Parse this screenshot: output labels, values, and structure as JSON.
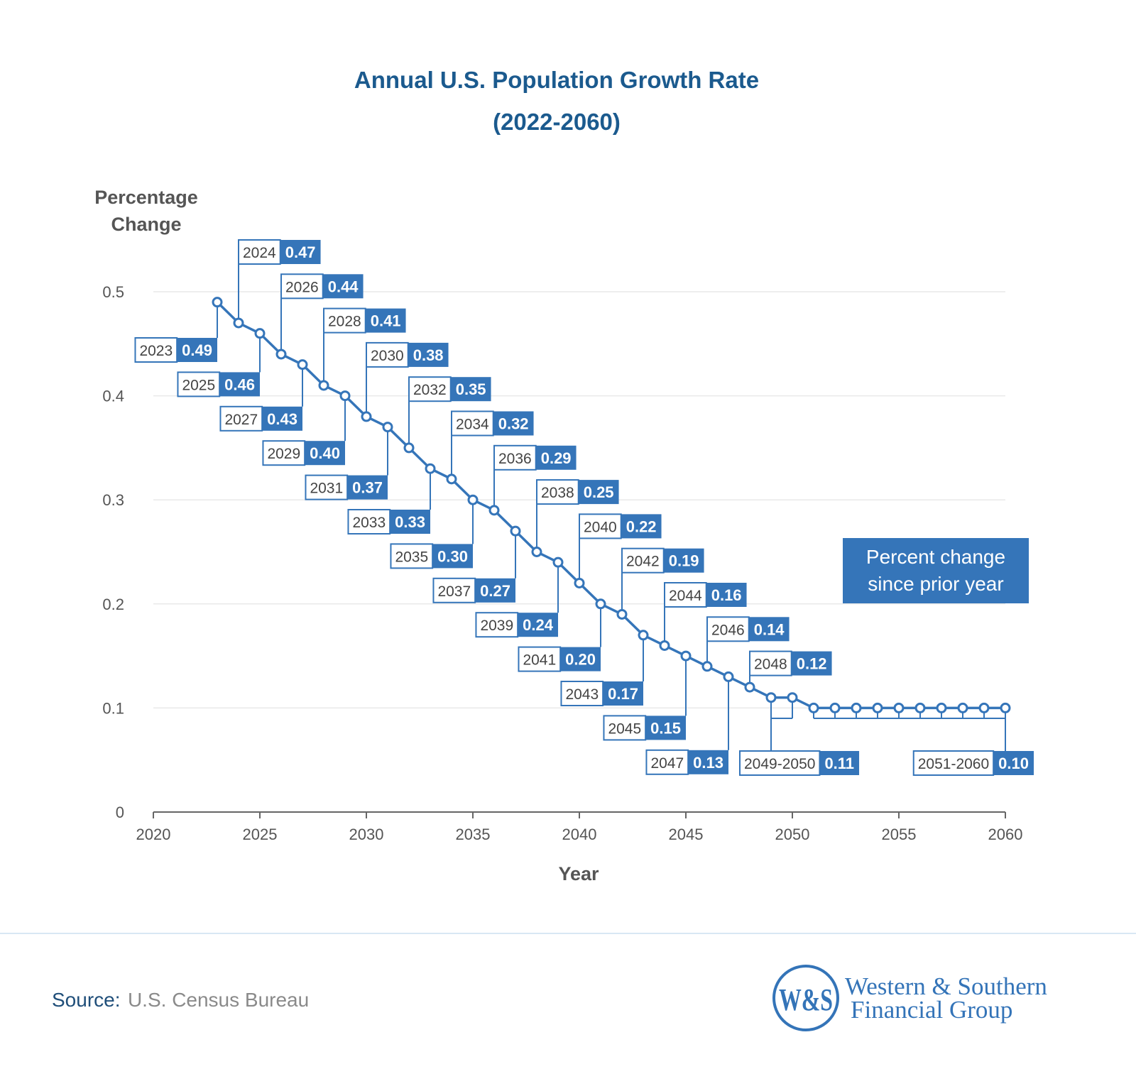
{
  "colors": {
    "accent": "#3575b9",
    "title": "#1b5a8e",
    "axis_text": "#555555",
    "grid": "#e9e9e9"
  },
  "chart_data": {
    "type": "line",
    "title": "Annual U.S. Population Growth Rate",
    "subtitle": "(2022-2060)",
    "xlabel": "Year",
    "ylabel": [
      "Percentage",
      "Change"
    ],
    "xlim": [
      2020,
      2060
    ],
    "ylim": [
      0,
      0.5
    ],
    "x_ticks": [
      "2020",
      "2025",
      "2030",
      "2035",
      "2040",
      "2045",
      "2050",
      "2055",
      "2060"
    ],
    "y_ticks": [
      "0",
      "0.1",
      "0.2",
      "0.3",
      "0.4",
      "0.5"
    ],
    "grid": "horizontal",
    "x": [
      2023,
      2024,
      2025,
      2026,
      2027,
      2028,
      2029,
      2030,
      2031,
      2032,
      2033,
      2034,
      2035,
      2036,
      2037,
      2038,
      2039,
      2040,
      2041,
      2042,
      2043,
      2044,
      2045,
      2046,
      2047,
      2048,
      2049,
      2050,
      2051,
      2052,
      2053,
      2054,
      2055,
      2056,
      2057,
      2058,
      2059,
      2060
    ],
    "y": [
      0.49,
      0.47,
      0.46,
      0.44,
      0.43,
      0.41,
      0.4,
      0.38,
      0.37,
      0.35,
      0.33,
      0.32,
      0.3,
      0.29,
      0.27,
      0.25,
      0.24,
      0.22,
      0.2,
      0.19,
      0.17,
      0.16,
      0.15,
      0.14,
      0.13,
      0.12,
      0.11,
      0.11,
      0.1,
      0.1,
      0.1,
      0.1,
      0.1,
      0.1,
      0.1,
      0.1,
      0.1,
      0.1
    ],
    "labels": [
      {
        "text": "2023",
        "value": "0.49"
      },
      {
        "text": "2024",
        "value": "0.47"
      },
      {
        "text": "2025",
        "value": "0.46"
      },
      {
        "text": "2026",
        "value": "0.44"
      },
      {
        "text": "2027",
        "value": "0.43"
      },
      {
        "text": "2028",
        "value": "0.41"
      },
      {
        "text": "2029",
        "value": "0.40"
      },
      {
        "text": "2030",
        "value": "0.38"
      },
      {
        "text": "2031",
        "value": "0.37"
      },
      {
        "text": "2032",
        "value": "0.35"
      },
      {
        "text": "2033",
        "value": "0.33"
      },
      {
        "text": "2034",
        "value": "0.32"
      },
      {
        "text": "2035",
        "value": "0.30"
      },
      {
        "text": "2036",
        "value": "0.29"
      },
      {
        "text": "2037",
        "value": "0.27"
      },
      {
        "text": "2038",
        "value": "0.25"
      },
      {
        "text": "2039",
        "value": "0.24"
      },
      {
        "text": "2040",
        "value": "0.22"
      },
      {
        "text": "2041",
        "value": "0.20"
      },
      {
        "text": "2042",
        "value": "0.19"
      },
      {
        "text": "2043",
        "value": "0.17"
      },
      {
        "text": "2044",
        "value": "0.16"
      },
      {
        "text": "2045",
        "value": "0.15"
      },
      {
        "text": "2046",
        "value": "0.14"
      },
      {
        "text": "2047",
        "value": "0.13"
      },
      {
        "text": "2048",
        "value": "0.12"
      },
      {
        "text": "2049-2050",
        "value": "0.11"
      },
      {
        "text": "2051-2060",
        "value": "0.10"
      }
    ],
    "legend": [
      "Percent change",
      "since prior year"
    ]
  },
  "footer": {
    "source_label": "Source:",
    "source_value": "U.S. Census Bureau"
  },
  "logo": {
    "monogram": "W&S",
    "line1": "Western & Southern",
    "line2": "Financial Group"
  }
}
